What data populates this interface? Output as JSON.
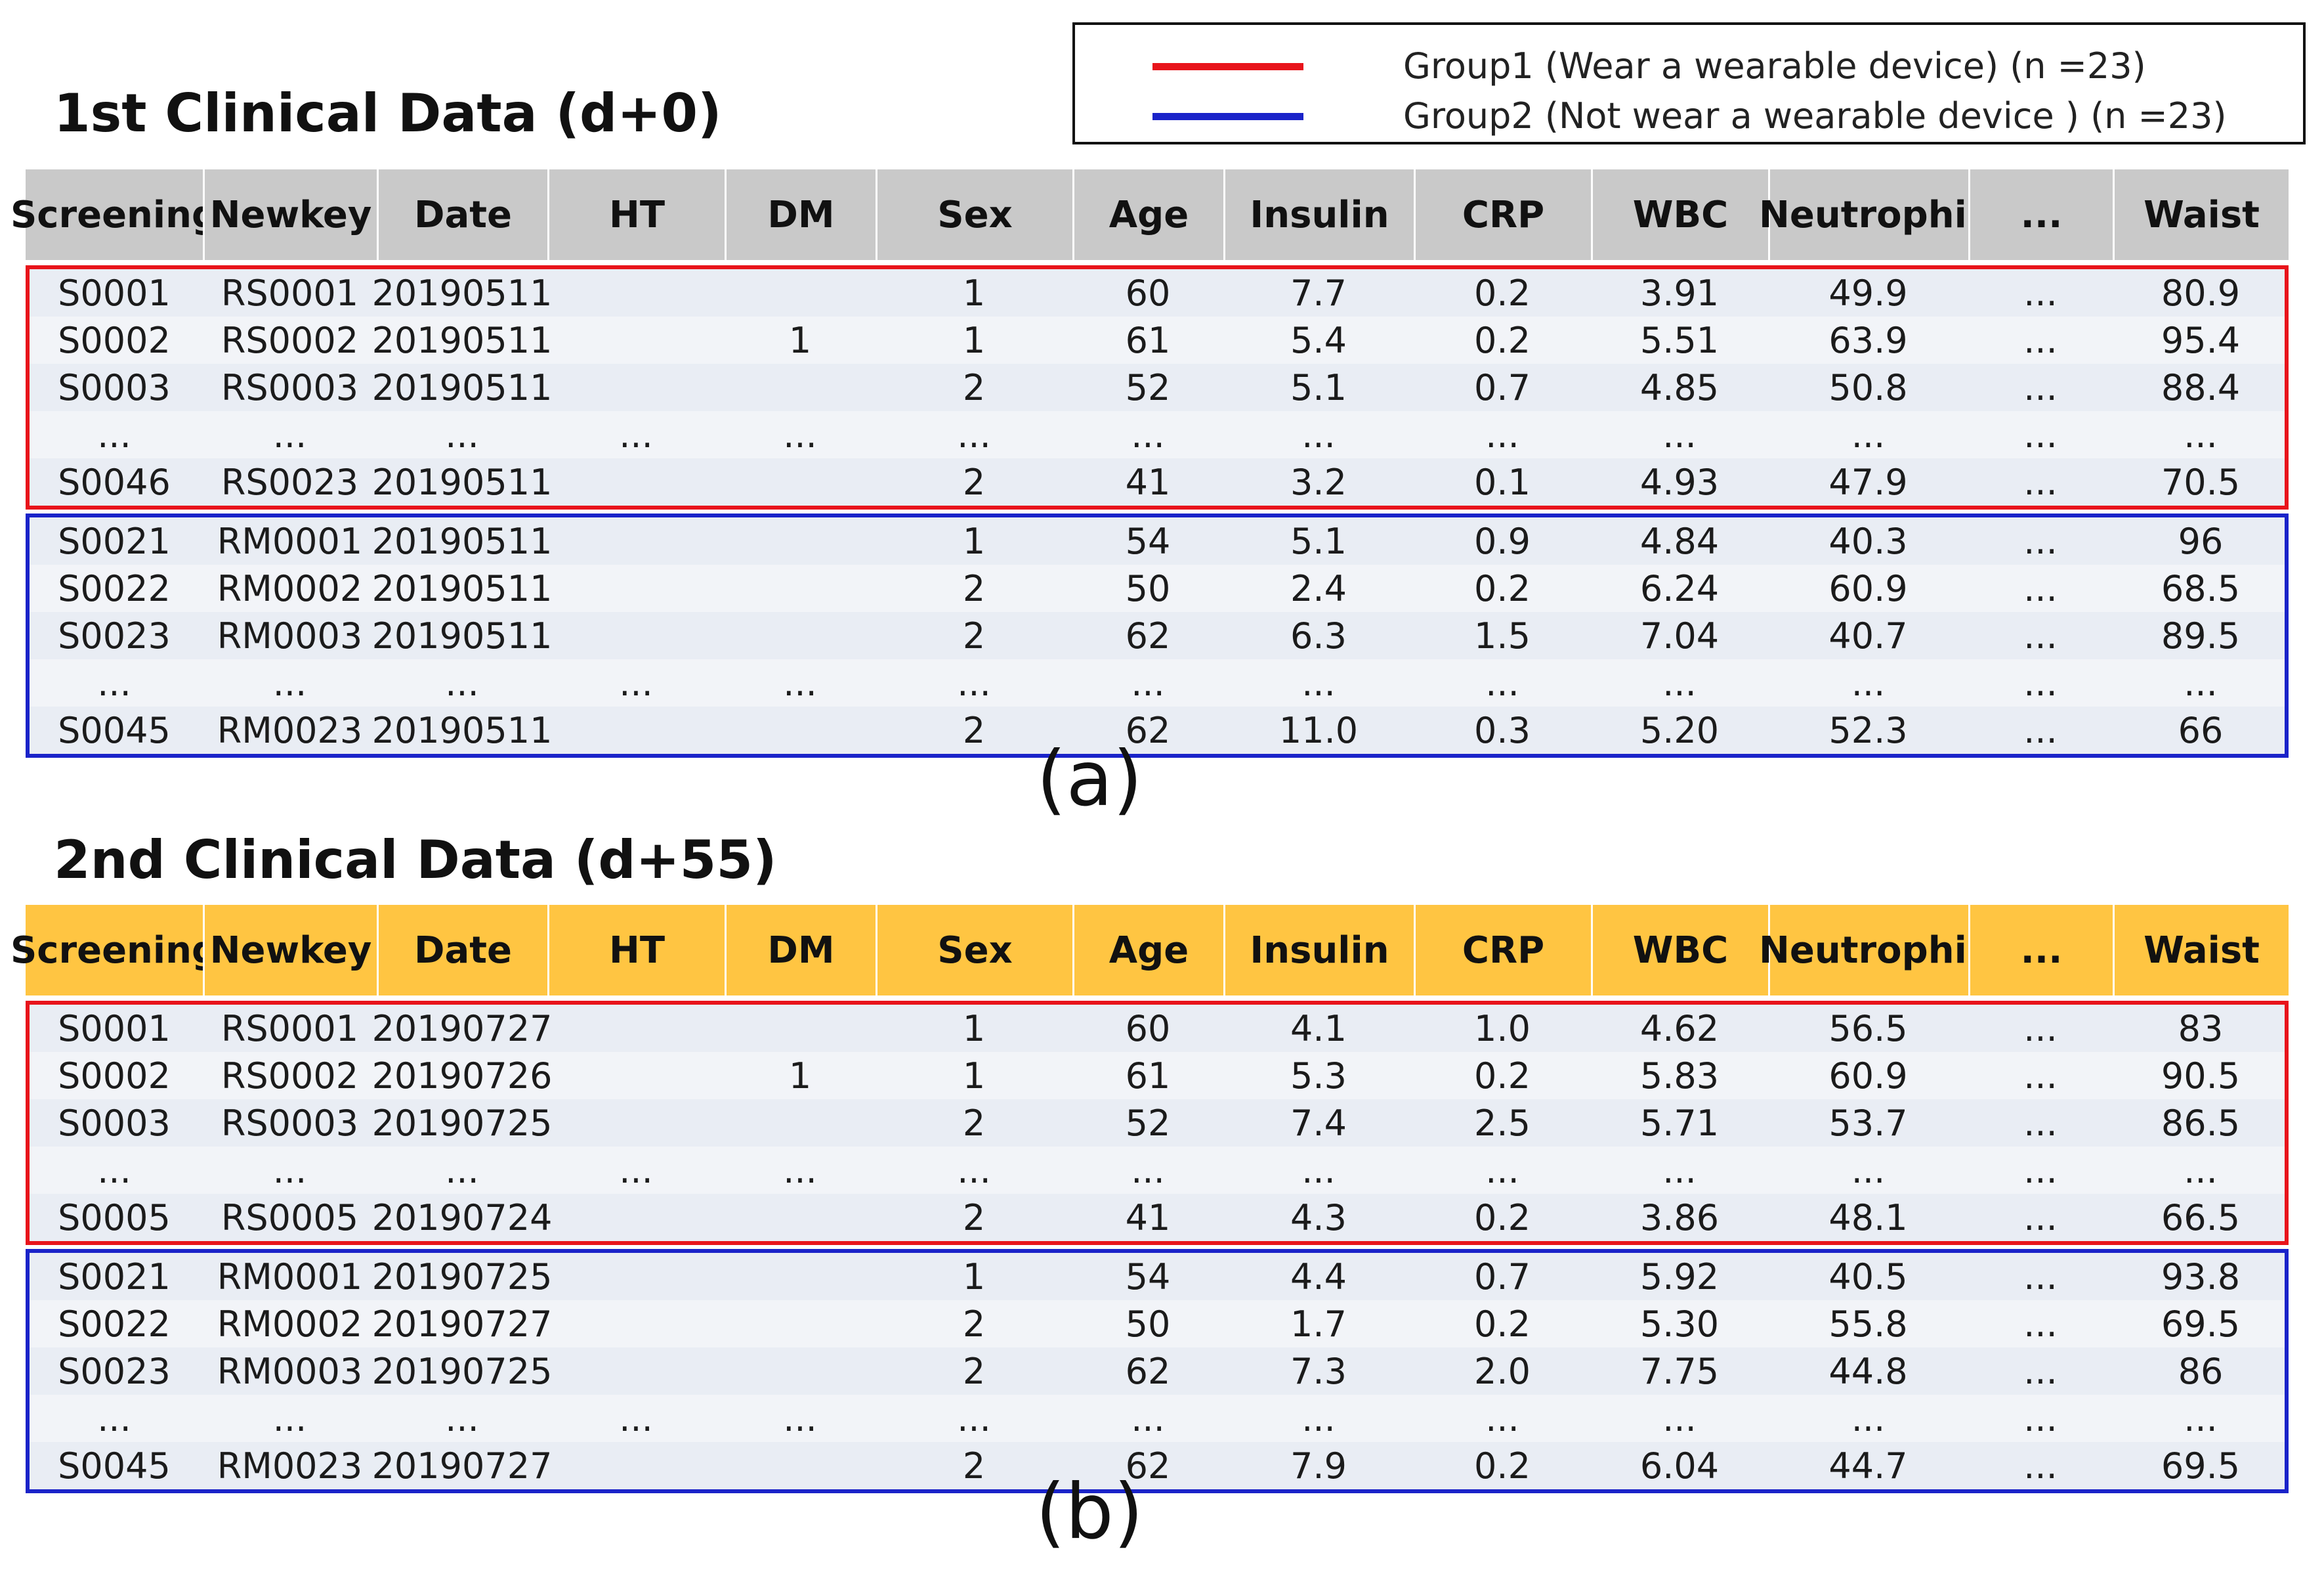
{
  "legend": {
    "items": [
      {
        "label": "Group1 (Wear a wearable device) (n =23)",
        "color": "#e8141b"
      },
      {
        "label": "Group2 (Not wear a wearable device ) (n =23)",
        "color": "#1a23c9"
      }
    ]
  },
  "columns": [
    "Screening",
    "Newkey",
    "Date",
    "HT",
    "DM",
    "Sex",
    "Age",
    "Insulin",
    "CRP",
    "WBC",
    "Neutrophil",
    "...",
    "Waist"
  ],
  "table1": {
    "title": "1st Clinical Data (d+0)",
    "caption": "(a)",
    "header_color": "#c9c9c9",
    "groups": [
      {
        "group": "Group1",
        "rows": [
          [
            "S0001",
            "RS0001",
            "20190511",
            "",
            "",
            "1",
            "60",
            "7.7",
            "0.2",
            "3.91",
            "49.9",
            "...",
            "80.9"
          ],
          [
            "S0002",
            "RS0002",
            "20190511",
            "",
            "1",
            "1",
            "61",
            "5.4",
            "0.2",
            "5.51",
            "63.9",
            "...",
            "95.4"
          ],
          [
            "S0003",
            "RS0003",
            "20190511",
            "",
            "",
            "2",
            "52",
            "5.1",
            "0.7",
            "4.85",
            "50.8",
            "...",
            "88.4"
          ],
          [
            "...",
            "...",
            "...",
            "...",
            "...",
            "...",
            "...",
            "...",
            "...",
            "...",
            "...",
            "...",
            "..."
          ],
          [
            "S0046",
            "RS0023",
            "20190511",
            "",
            "",
            "2",
            "41",
            "3.2",
            "0.1",
            "4.93",
            "47.9",
            "...",
            "70.5"
          ]
        ]
      },
      {
        "group": "Group2",
        "rows": [
          [
            "S0021",
            "RM0001",
            "20190511",
            "",
            "",
            "1",
            "54",
            "5.1",
            "0.9",
            "4.84",
            "40.3",
            "...",
            "96"
          ],
          [
            "S0022",
            "RM0002",
            "20190511",
            "",
            "",
            "2",
            "50",
            "2.4",
            "0.2",
            "6.24",
            "60.9",
            "...",
            "68.5"
          ],
          [
            "S0023",
            "RM0003",
            "20190511",
            "",
            "",
            "2",
            "62",
            "6.3",
            "1.5",
            "7.04",
            "40.7",
            "...",
            "89.5"
          ],
          [
            "...",
            "...",
            "...",
            "...",
            "...",
            "...",
            "...",
            "...",
            "...",
            "...",
            "...",
            "...",
            "..."
          ],
          [
            "S0045",
            "RM0023",
            "20190511",
            "",
            "",
            "2",
            "62",
            "11.0",
            "0.3",
            "5.20",
            "52.3",
            "...",
            "66"
          ]
        ]
      }
    ]
  },
  "table2": {
    "title": "2nd Clinical Data (d+55)",
    "caption": "(b)",
    "header_color": "#ffc542",
    "groups": [
      {
        "group": "Group1",
        "rows": [
          [
            "S0001",
            "RS0001",
            "20190727",
            "",
            "",
            "1",
            "60",
            "4.1",
            "1.0",
            "4.62",
            "56.5",
            "...",
            "83"
          ],
          [
            "S0002",
            "RS0002",
            "20190726",
            "",
            "1",
            "1",
            "61",
            "5.3",
            "0.2",
            "5.83",
            "60.9",
            "...",
            "90.5"
          ],
          [
            "S0003",
            "RS0003",
            "20190725",
            "",
            "",
            "2",
            "52",
            "7.4",
            "2.5",
            "5.71",
            "53.7",
            "...",
            "86.5"
          ],
          [
            "...",
            "...",
            "...",
            "...",
            "...",
            "...",
            "...",
            "...",
            "...",
            "...",
            "...",
            "...",
            "..."
          ],
          [
            "S0005",
            "RS0005",
            "20190724",
            "",
            "",
            "2",
            "41",
            "4.3",
            "0.2",
            "3.86",
            "48.1",
            "...",
            "66.5"
          ]
        ]
      },
      {
        "group": "Group2",
        "rows": [
          [
            "S0021",
            "RM0001",
            "20190725",
            "",
            "",
            "1",
            "54",
            "4.4",
            "0.7",
            "5.92",
            "40.5",
            "...",
            "93.8"
          ],
          [
            "S0022",
            "RM0002",
            "20190727",
            "",
            "",
            "2",
            "50",
            "1.7",
            "0.2",
            "5.30",
            "55.8",
            "...",
            "69.5"
          ],
          [
            "S0023",
            "RM0003",
            "20190725",
            "",
            "",
            "2",
            "62",
            "7.3",
            "2.0",
            "7.75",
            "44.8",
            "...",
            "86"
          ],
          [
            "...",
            "...",
            "...",
            "...",
            "...",
            "...",
            "...",
            "...",
            "...",
            "...",
            "...",
            "...",
            "..."
          ],
          [
            "S0045",
            "RM0023",
            "20190727",
            "",
            "",
            "2",
            "62",
            "7.9",
            "0.2",
            "6.04",
            "44.7",
            "...",
            "69.5"
          ]
        ]
      }
    ]
  }
}
